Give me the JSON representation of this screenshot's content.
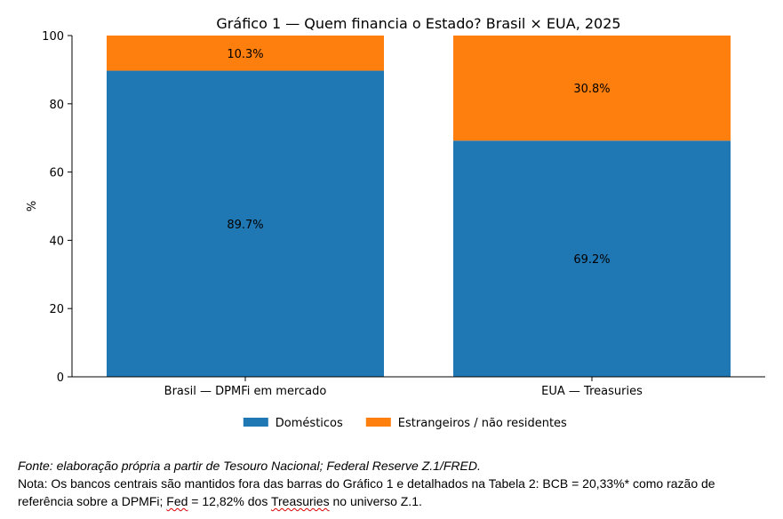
{
  "chart_data": {
    "type": "bar",
    "stacked": true,
    "title": "Gráfico 1 — Quem financia o Estado? Brasil × EUA, 2025",
    "xlabel": "",
    "ylabel": "%",
    "ylim": [
      0,
      100
    ],
    "yticks": [
      "0",
      "20",
      "40",
      "60",
      "80",
      "100"
    ],
    "categories": [
      "Brasil — DPMFi em mercado",
      "EUA — Treasuries"
    ],
    "series": [
      {
        "name": "Domésticos",
        "values": [
          89.7,
          69.2
        ],
        "labels": [
          "89.7%",
          "69.2%"
        ],
        "color": "#1f77b4"
      },
      {
        "name": "Estrangeiros / não residentes",
        "values": [
          10.3,
          30.8
        ],
        "labels": [
          "10.3%",
          "30.8%"
        ],
        "color": "#ff7f0e"
      }
    ],
    "legend_position": "bottom-center",
    "grid": false
  },
  "footnotes": {
    "source": "Fonte: elaboração própria a partir de Tesouro Nacional; Federal Reserve Z.1/FRED.",
    "note_part1": "Nota: Os bancos centrais são mantidos fora das barras do Gráfico 1 e detalhados na Tabela 2: BCB = 20,33%* como razão de referência sobre a DPMFi; ",
    "note_fed": "Fed",
    "note_part2": " = 12,82% dos ",
    "note_treasuries": "Treasuries",
    "note_part3": " no universo Z.1."
  }
}
